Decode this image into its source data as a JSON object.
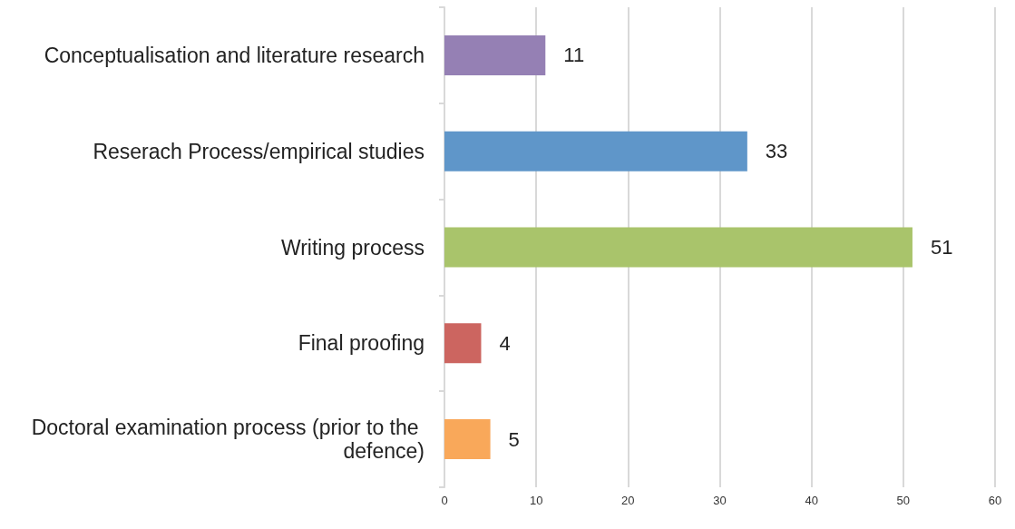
{
  "chart_data": {
    "type": "bar",
    "orientation": "horizontal",
    "categories": [
      "Conceptualisation and literature research",
      "Reserach Process/empirical studies",
      "Writing process",
      "Final proofing",
      "Doctoral examination process (prior to the defence)"
    ],
    "values": [
      11,
      33,
      51,
      4,
      5
    ],
    "colors": [
      "#9580b4",
      "#5f96c9",
      "#a9c46b",
      "#cc6560",
      "#f9a85a"
    ],
    "xlim": [
      0,
      60
    ],
    "xticks": [
      0,
      10,
      20,
      30,
      40,
      50,
      60
    ],
    "grid": "x",
    "data_labels": true
  }
}
